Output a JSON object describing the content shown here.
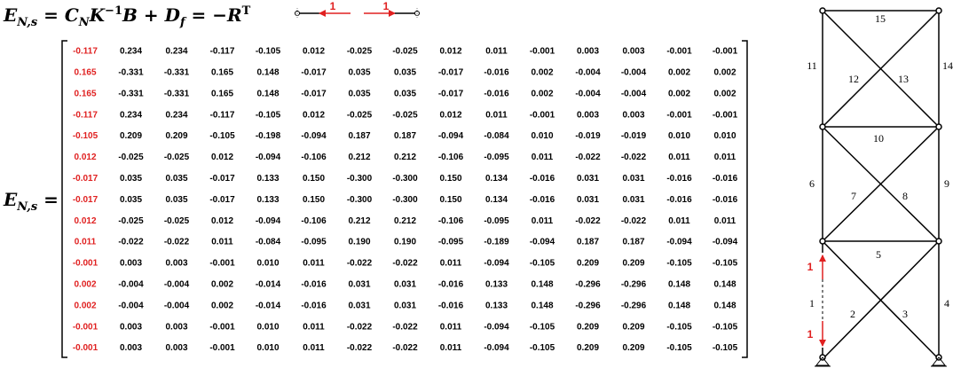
{
  "equation": [
    "E",
    "N,s",
    " = ",
    "C",
    "N",
    "K",
    "−1",
    "B",
    " + ",
    "D",
    "f",
    " = −",
    "R",
    "T"
  ],
  "matrix_label": [
    "E",
    "N,s",
    " ="
  ],
  "legend_labels": [
    "1",
    "1"
  ],
  "matrix": [
    [
      "-0.117",
      "0.234",
      "0.234",
      "-0.117",
      "-0.105",
      "0.012",
      "-0.025",
      "-0.025",
      "0.012",
      "0.011",
      "-0.001",
      "0.003",
      "0.003",
      "-0.001",
      "-0.001"
    ],
    [
      "0.165",
      "-0.331",
      "-0.331",
      "0.165",
      "0.148",
      "-0.017",
      "0.035",
      "0.035",
      "-0.017",
      "-0.016",
      "0.002",
      "-0.004",
      "-0.004",
      "0.002",
      "0.002"
    ],
    [
      "0.165",
      "-0.331",
      "-0.331",
      "0.165",
      "0.148",
      "-0.017",
      "0.035",
      "0.035",
      "-0.017",
      "-0.016",
      "0.002",
      "-0.004",
      "-0.004",
      "0.002",
      "0.002"
    ],
    [
      "-0.117",
      "0.234",
      "0.234",
      "-0.117",
      "-0.105",
      "0.012",
      "-0.025",
      "-0.025",
      "0.012",
      "0.011",
      "-0.001",
      "0.003",
      "0.003",
      "-0.001",
      "-0.001"
    ],
    [
      "-0.105",
      "0.209",
      "0.209",
      "-0.105",
      "-0.198",
      "-0.094",
      "0.187",
      "0.187",
      "-0.094",
      "-0.084",
      "0.010",
      "-0.019",
      "-0.019",
      "0.010",
      "0.010"
    ],
    [
      "0.012",
      "-0.025",
      "-0.025",
      "0.012",
      "-0.094",
      "-0.106",
      "0.212",
      "0.212",
      "-0.106",
      "-0.095",
      "0.011",
      "-0.022",
      "-0.022",
      "0.011",
      "0.011"
    ],
    [
      "-0.017",
      "0.035",
      "0.035",
      "-0.017",
      "0.133",
      "0.150",
      "-0.300",
      "-0.300",
      "0.150",
      "0.134",
      "-0.016",
      "0.031",
      "0.031",
      "-0.016",
      "-0.016"
    ],
    [
      "-0.017",
      "0.035",
      "0.035",
      "-0.017",
      "0.133",
      "0.150",
      "-0.300",
      "-0.300",
      "0.150",
      "0.134",
      "-0.016",
      "0.031",
      "0.031",
      "-0.016",
      "-0.016"
    ],
    [
      "0.012",
      "-0.025",
      "-0.025",
      "0.012",
      "-0.094",
      "-0.106",
      "0.212",
      "0.212",
      "-0.106",
      "-0.095",
      "0.011",
      "-0.022",
      "-0.022",
      "0.011",
      "0.011"
    ],
    [
      "0.011",
      "-0.022",
      "-0.022",
      "0.011",
      "-0.084",
      "-0.095",
      "0.190",
      "0.190",
      "-0.095",
      "-0.189",
      "-0.094",
      "0.187",
      "0.187",
      "-0.094",
      "-0.094"
    ],
    [
      "-0.001",
      "0.003",
      "0.003",
      "-0.001",
      "0.010",
      "0.011",
      "-0.022",
      "-0.022",
      "0.011",
      "-0.094",
      "-0.105",
      "0.209",
      "0.209",
      "-0.105",
      "-0.105"
    ],
    [
      "0.002",
      "-0.004",
      "-0.004",
      "0.002",
      "-0.014",
      "-0.016",
      "0.031",
      "0.031",
      "-0.016",
      "0.133",
      "0.148",
      "-0.296",
      "-0.296",
      "0.148",
      "0.148"
    ],
    [
      "0.002",
      "-0.004",
      "-0.004",
      "0.002",
      "-0.014",
      "-0.016",
      "0.031",
      "0.031",
      "-0.016",
      "0.133",
      "0.148",
      "-0.296",
      "-0.296",
      "0.148",
      "0.148"
    ],
    [
      "-0.001",
      "0.003",
      "0.003",
      "-0.001",
      "0.010",
      "0.011",
      "-0.022",
      "-0.022",
      "0.011",
      "-0.094",
      "-0.105",
      "0.209",
      "0.209",
      "-0.105",
      "-0.105"
    ],
    [
      "-0.001",
      "0.003",
      "0.003",
      "-0.001",
      "0.010",
      "0.011",
      "-0.022",
      "-0.022",
      "0.011",
      "-0.094",
      "-0.105",
      "0.209",
      "0.209",
      "-0.105",
      "-0.105"
    ]
  ],
  "members": [
    "1",
    "2",
    "3",
    "4",
    "5",
    "6",
    "7",
    "8",
    "9",
    "10",
    "11",
    "12",
    "13",
    "14",
    "15"
  ],
  "load_labels": [
    "1",
    "1"
  ]
}
